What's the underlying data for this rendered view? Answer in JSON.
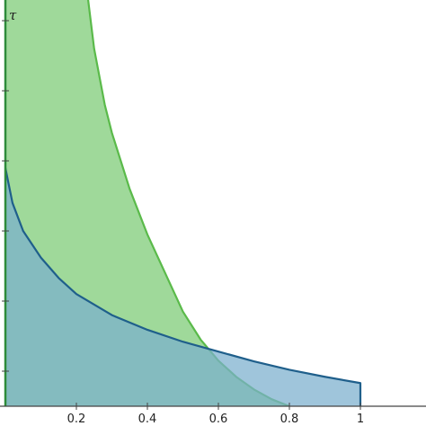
{
  "chart_data": {
    "type": "area",
    "xlabel": "",
    "ylabel": "τ",
    "xlim": [
      0,
      1.2
    ],
    "ylim": [
      0,
      5.8
    ],
    "x_ticks": [
      {
        "value": 0.2,
        "label": "0.2"
      },
      {
        "value": 0.4,
        "label": "0.4"
      },
      {
        "value": 0.6,
        "label": "0.6"
      },
      {
        "value": 0.8,
        "label": "0.8"
      },
      {
        "value": 1,
        "label": "1"
      }
    ],
    "y_ticks": [
      0.5,
      1.5,
      2.5,
      3.5,
      4.5,
      5.5
    ],
    "grid": false,
    "series": [
      {
        "color": "#5aba4a",
        "fill": "#9fd99a",
        "points": [
          [
            0.233,
            5.8
          ],
          [
            0.25,
            5.1
          ],
          [
            0.28,
            4.3
          ],
          [
            0.3,
            3.9
          ],
          [
            0.35,
            3.1
          ],
          [
            0.4,
            2.45
          ],
          [
            0.45,
            1.9
          ],
          [
            0.5,
            1.35
          ],
          [
            0.55,
            0.95
          ],
          [
            0.6,
            0.65
          ],
          [
            0.65,
            0.42
          ],
          [
            0.7,
            0.24
          ],
          [
            0.75,
            0.1
          ],
          [
            0.8,
            0.0
          ]
        ]
      },
      {
        "color": "#1f5f8b",
        "fill": "#7aaecd",
        "points": [
          [
            0.0,
            3.4
          ],
          [
            0.02,
            2.9
          ],
          [
            0.05,
            2.5
          ],
          [
            0.1,
            2.12
          ],
          [
            0.15,
            1.83
          ],
          [
            0.2,
            1.6
          ],
          [
            0.3,
            1.3
          ],
          [
            0.4,
            1.09
          ],
          [
            0.5,
            0.92
          ],
          [
            0.6,
            0.78
          ],
          [
            0.7,
            0.64
          ],
          [
            0.8,
            0.52
          ],
          [
            0.9,
            0.42
          ],
          [
            1.0,
            0.33
          ],
          [
            1.0,
            0.0
          ]
        ]
      }
    ]
  }
}
